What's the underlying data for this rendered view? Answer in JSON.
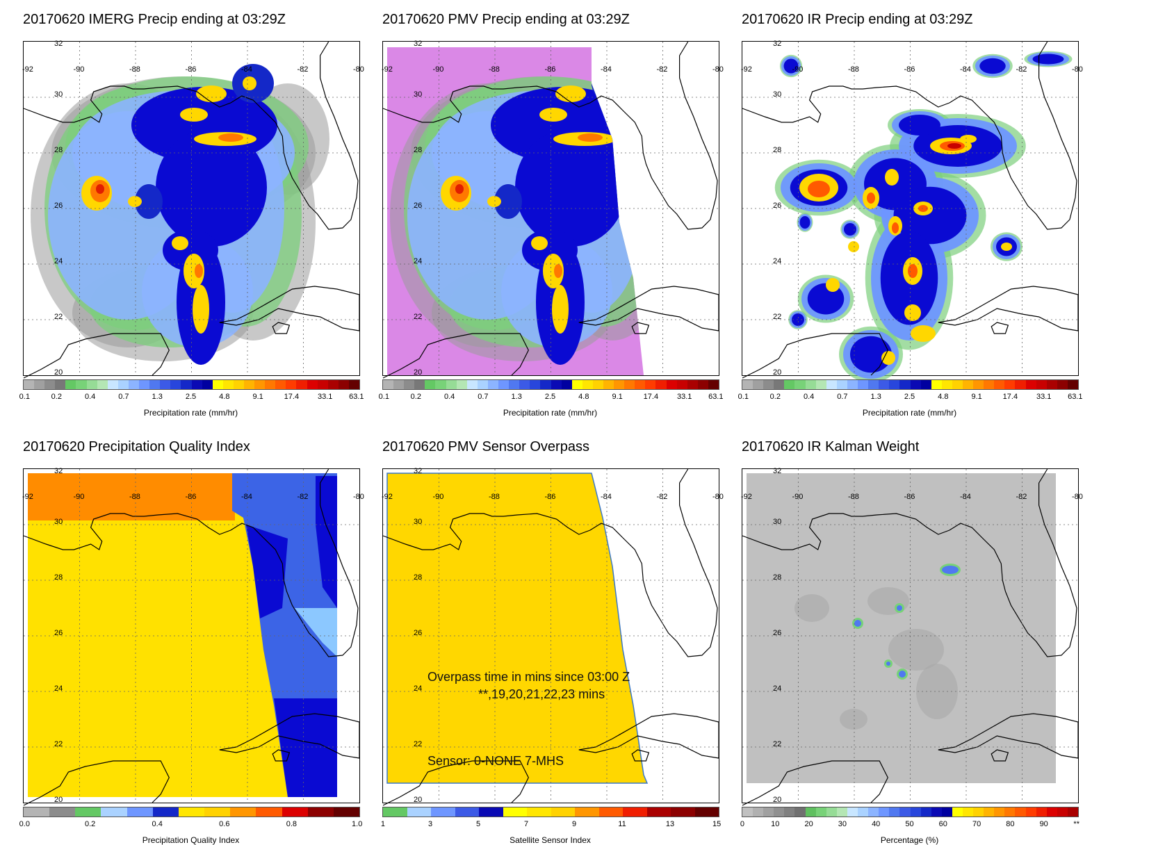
{
  "panels": [
    {
      "id": "imerg",
      "title": "20170620 IMERG Precip ending at 03:29Z",
      "cb_ticks": [
        "0.1",
        "0.2",
        "0.4",
        "0.7",
        "1.3",
        "2.5",
        "4.8",
        "9.1",
        "17.4",
        "33.1",
        "63.1"
      ],
      "cb_label": "Precipitation rate (mm/hr)"
    },
    {
      "id": "pmv",
      "title": "20170620 PMV Precip ending at 03:29Z",
      "cb_ticks": [
        "0.1",
        "0.2",
        "0.4",
        "0.7",
        "1.3",
        "2.5",
        "4.8",
        "9.1",
        "17.4",
        "33.1",
        "63.1"
      ],
      "cb_label": "Precipitation rate (mm/hr)"
    },
    {
      "id": "ir",
      "title": "20170620 IR Precip ending at 03:29Z",
      "cb_ticks": [
        "0.1",
        "0.2",
        "0.4",
        "0.7",
        "1.3",
        "2.5",
        "4.8",
        "9.1",
        "17.4",
        "33.1",
        "63.1"
      ],
      "cb_label": "Precipitation rate (mm/hr)"
    },
    {
      "id": "pqi",
      "title": "20170620 Precipitation Quality Index",
      "cb_ticks": [
        "0.0",
        "0.2",
        "0.4",
        "0.6",
        "0.8",
        "1.0"
      ],
      "cb_label": "Precipitation Quality Index"
    },
    {
      "id": "overpass",
      "title": "20170620 PMV Sensor Overpass",
      "cb_ticks": [
        "1",
        "3",
        "5",
        "7",
        "9",
        "11",
        "13",
        "15"
      ],
      "cb_label": "Satellite Sensor Index",
      "annotations": {
        "line1": "Overpass time in mins since 03:00 Z",
        "line2": "**,19,20,21,22,23 mins",
        "line3": "Sensor:   0-NONE  7-MHS"
      }
    },
    {
      "id": "kalman",
      "title": "20170620 IR Kalman Weight",
      "cb_ticks": [
        "0",
        "10",
        "20",
        "30",
        "40",
        "50",
        "60",
        "70",
        "80",
        "90",
        "**"
      ],
      "cb_label": "Percentage (%)"
    }
  ],
  "axes": {
    "longitudes": [
      "-92",
      "-90",
      "-88",
      "-86",
      "-84",
      "-82",
      "-80"
    ],
    "latitudes": [
      "32",
      "30",
      "28",
      "26",
      "24",
      "22",
      "20"
    ]
  },
  "colorbars": {
    "precip": [
      "#b4b4b4",
      "#a0a0a0",
      "#8c8c8c",
      "#787878",
      "#64c864",
      "#78d278",
      "#96dc96",
      "#b4e6b4",
      "#c8e6ff",
      "#aad2ff",
      "#8cb4ff",
      "#6e96ff",
      "#5078f0",
      "#3c5ae6",
      "#2846dc",
      "#1428c8",
      "#0a0ab4",
      "#0000a0",
      "#ffff00",
      "#ffe600",
      "#ffd200",
      "#ffb400",
      "#ff9600",
      "#ff7800",
      "#ff5a00",
      "#ff3c00",
      "#f01e00",
      "#dc0000",
      "#c80000",
      "#aa0000",
      "#8c0000",
      "#640000"
    ],
    "pqi": [
      "#b4b4b4",
      "#8c8c8c",
      "#64c864",
      "#aad2ff",
      "#6e96ff",
      "#1428c8",
      "#ffe600",
      "#ffd200",
      "#ff9600",
      "#ff5a00",
      "#dc0000",
      "#8c0000",
      "#640000"
    ],
    "sensor": [
      "#64c864",
      "#aad2ff",
      "#6e96ff",
      "#3c5ae6",
      "#0a0ab4",
      "#ffff00",
      "#ffe600",
      "#ffd200",
      "#ff9600",
      "#ff5a00",
      "#f01e00",
      "#aa0000",
      "#8c0000",
      "#640000"
    ],
    "kalman": [
      "#c0c0c0",
      "#b0b0b0",
      "#a0a0a0",
      "#909090",
      "#808080",
      "#707070",
      "#60c060",
      "#78d278",
      "#96dc96",
      "#b4e6b4",
      "#c8e6ff",
      "#aad2ff",
      "#8cb4ff",
      "#6e96ff",
      "#5078f0",
      "#3c5ae6",
      "#2846dc",
      "#1428c8",
      "#0a0ab4",
      "#0000a0",
      "#ffff00",
      "#ffe600",
      "#ffd200",
      "#ffb400",
      "#ff9600",
      "#ff7800",
      "#ff5a00",
      "#ff3c00",
      "#f01e00",
      "#dc0000",
      "#c80000",
      "#aa0000"
    ]
  },
  "colors": {
    "magenta_nodata": "#da88e6",
    "pqi_orange": "#ff8c00",
    "pqi_yellow": "#ffe100",
    "pqi_blue": "#3c64e6",
    "pqi_darkblue": "#0a0ad2",
    "pqi_lightblue": "#8cc8ff",
    "sensor_yellow": "#ffd700",
    "kalman_gray": "#c0c0c0"
  }
}
